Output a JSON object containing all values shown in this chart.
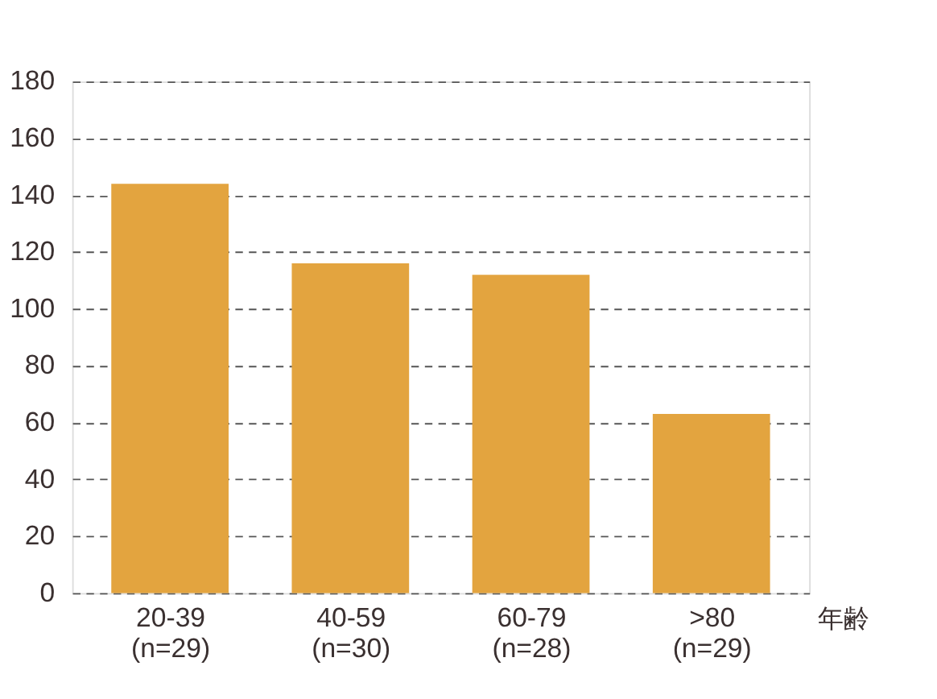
{
  "chart_data": {
    "type": "bar",
    "categories": [
      "20-39\n(n=29)",
      "40-59\n(n=30)",
      "60-79\n(n=28)",
      ">80\n(n=29)"
    ],
    "values": [
      144,
      116,
      112,
      63
    ],
    "color": "#e3a43f",
    "xlabel": "年齢",
    "ylim": [
      0,
      180
    ],
    "yticks": [
      0,
      20,
      40,
      60,
      80,
      100,
      120,
      140,
      160,
      180
    ],
    "grid": "y"
  }
}
